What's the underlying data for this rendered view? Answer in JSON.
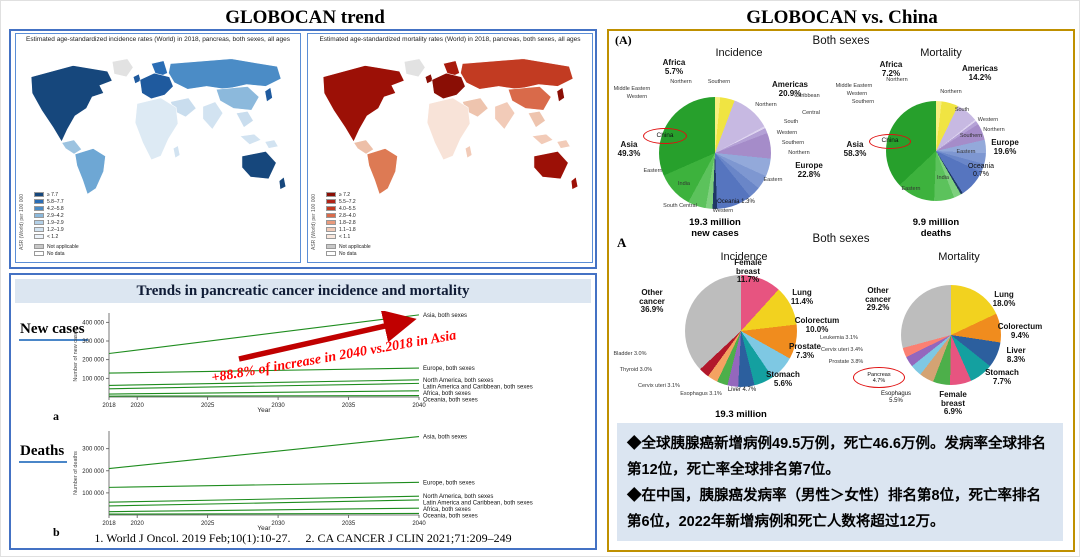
{
  "left_panel": {
    "title": "GLOBOCAN  trend",
    "citations": "1. World J Oncol. 2019 Feb;10(1):10-27.     2. CA CANCER J CLIN 2021;71:209–249",
    "trend_box": {
      "header": "Trends in pancreatic cancer incidence and mortality",
      "panel_a": "a",
      "panel_b": "b"
    }
  },
  "right_panel": {
    "title": "GLOBOCAN  vs. China",
    "marker_a": "(A)",
    "marker_a2": "A",
    "row1_header": "Both sexes",
    "row2_header": "Both sexes",
    "notes": {
      "bg_color": "#dbe5f1",
      "line1": "◆全球胰腺癌新增病例49.5万例，死亡46.6万例。发病率全球排名第12位，死亡率全球排名第7位。",
      "line2": "◆在中国，胰腺癌发病率（男性＞女性）排名第8位，死亡率排名第6位，2022年新增病例和死亡人数将超过12万。"
    }
  },
  "chart_data": {
    "maps": [
      {
        "type": "choropleth",
        "title": "Estimated age-standardized incidence rates (World) in 2018, pancreas, both sexes, all ages",
        "metric": "ASR (World) per 100 000",
        "legend_bins": [
          "≥ 7.7",
          "5.8–7.7",
          "4.2–5.8",
          "2.9–4.2",
          "1.9–2.9",
          "1.2–1.9",
          "< 1.2"
        ],
        "legend_colors": [
          "#16477c",
          "#2a6db5",
          "#4b8cc6",
          "#8cb9dc",
          "#b3d0e7",
          "#d2e3f1",
          "#ecf3fa"
        ],
        "note_labels": [
          "Not applicable",
          "No data"
        ],
        "note_colors": [
          "#c8c8c8",
          "#ffffff"
        ]
      },
      {
        "type": "choropleth",
        "title": "Estimated age-standardized mortality rates (World) in 2018, pancreas, both sexes, all ages",
        "metric": "ASR (World) per 100 000",
        "legend_bins": [
          "≥ 7.2",
          "5.5–7.2",
          "4.0–5.5",
          "2.8–4.0",
          "1.8–2.8",
          "1.1–1.8",
          "< 1.1"
        ],
        "legend_colors": [
          "#8a0e05",
          "#b02418",
          "#c23b22",
          "#d96a4a",
          "#e99a7c",
          "#f2cbb8",
          "#f9e7dd"
        ],
        "note_labels": [
          "Not applicable",
          "No data"
        ],
        "note_colors": [
          "#c8c8c8",
          "#ffffff"
        ]
      }
    ],
    "line_charts": [
      {
        "type": "line",
        "title": "New cases",
        "xlabel": "Year",
        "ylabel": "Number of new cases",
        "xlim": [
          2018,
          2040
        ],
        "x_ticks": [
          2018,
          2020,
          2025,
          2030,
          2035,
          2040
        ],
        "ylim": [
          0,
          450000
        ],
        "y_ticks": [
          100000,
          200000,
          300000,
          400000
        ],
        "line_color": "#1e8c1e",
        "series": [
          {
            "name": "Asia, both sexes",
            "points": [
              [
                2018,
                233000
              ],
              [
                2040,
                440000
              ]
            ]
          },
          {
            "name": "Europe, both sexes",
            "points": [
              [
                2018,
                128000
              ],
              [
                2040,
                155000
              ]
            ]
          },
          {
            "name": "North America, both sexes",
            "points": [
              [
                2018,
                62000
              ],
              [
                2040,
                92000
              ]
            ]
          },
          {
            "name": "Latin America and Caribbean, both sexes",
            "points": [
              [
                2018,
                44000
              ],
              [
                2040,
                73000
              ]
            ]
          },
          {
            "name": "Africa, both sexes",
            "points": [
              [
                2018,
                16000
              ],
              [
                2040,
                33000
              ]
            ]
          },
          {
            "name": "Oceania, both sexes",
            "points": [
              [
                2018,
                4600
              ],
              [
                2040,
                7600
              ]
            ]
          }
        ],
        "annotation": "+88.8% of increase in 2040 vs.2018 in Asia",
        "annotation_color": "#ff0000",
        "arrow_color": "#c00000"
      },
      {
        "type": "line",
        "title": "Deaths",
        "xlabel": "Year",
        "ylabel": "Number of deaths",
        "xlim": [
          2018,
          2040
        ],
        "x_ticks": [
          2018,
          2020,
          2025,
          2030,
          2035,
          2040
        ],
        "ylim": [
          0,
          380000
        ],
        "y_ticks": [
          100000,
          200000,
          300000
        ],
        "line_color": "#1e8c1e",
        "series": [
          {
            "name": "Asia, both sexes",
            "points": [
              [
                2018,
                210000
              ],
              [
                2040,
                355000
              ]
            ]
          },
          {
            "name": "Europe, both sexes",
            "points": [
              [
                2018,
                125000
              ],
              [
                2040,
                148000
              ]
            ]
          },
          {
            "name": "North America, both sexes",
            "points": [
              [
                2018,
                58000
              ],
              [
                2040,
                85000
              ]
            ]
          },
          {
            "name": "Latin America and Caribbean, both sexes",
            "points": [
              [
                2018,
                41000
              ],
              [
                2040,
                68000
              ]
            ]
          },
          {
            "name": "Africa, both sexes",
            "points": [
              [
                2018,
                15000
              ],
              [
                2040,
                31000
              ]
            ]
          },
          {
            "name": "Oceania, both sexes",
            "points": [
              [
                2018,
                4300
              ],
              [
                2040,
                7000
              ]
            ]
          }
        ]
      }
    ],
    "pies": [
      {
        "type": "pie",
        "title": "Incidence",
        "group": "Both sexes",
        "total_label": "19.3 million\nnew cases",
        "highlight": "China",
        "slices": [
          {
            "label": "Africa – Northern",
            "pct": 1.5,
            "color": "#f8ef7e"
          },
          {
            "label": "Africa – Sub-Saharan",
            "pct": 4.2,
            "color": "#f0e442"
          },
          {
            "label": "Americas – Northern",
            "pct": 11.4,
            "color": "#c7b9e2"
          },
          {
            "label": "Americas – Caribbean",
            "pct": 0.6,
            "color": "#ddd3ef"
          },
          {
            "label": "Americas – Central",
            "pct": 1.5,
            "color": "#b4a1d6"
          },
          {
            "label": "Americas – South",
            "pct": 7.4,
            "color": "#a58cc9"
          },
          {
            "label": "Europe – Western",
            "pct": 5.2,
            "color": "#93a9da"
          },
          {
            "label": "Europe – Southern",
            "pct": 4.0,
            "color": "#7e97d1"
          },
          {
            "label": "Europe – Northern",
            "pct": 3.4,
            "color": "#6a86c8"
          },
          {
            "label": "Europe – Eastern",
            "pct": 10.2,
            "color": "#5675bf"
          },
          {
            "label": "Oceania",
            "pct": 1.3,
            "color": "#1f3864"
          },
          {
            "label": "Asia – Western",
            "pct": 2.0,
            "color": "#7ed07e"
          },
          {
            "label": "Asia – South-Eastern",
            "pct": 5.2,
            "color": "#5cc25c"
          },
          {
            "label": "Asia – South Central (India)",
            "pct": 10.5,
            "color": "#3db23d"
          },
          {
            "label": "Asia – Eastern (China)",
            "pct": 31.6,
            "color": "#27a02c"
          }
        ],
        "main": [
          {
            "label": "Asia",
            "pct": 49.3
          },
          {
            "label": "Europe",
            "pct": 22.8
          },
          {
            "label": "Americas",
            "pct": 20.9
          },
          {
            "label": "Africa",
            "pct": 5.7
          },
          {
            "label": "Oceania",
            "pct": 1.3
          }
        ],
        "callouts": {
          "africa": "Africa\n5.7%",
          "middle_eastern": "Middle Eastern",
          "western_africa": "Western",
          "northern_africa": "Northern",
          "southern_africa": "Southern",
          "americas": "Americas\n20.9%",
          "northern_america": "Northern",
          "caribbean": "Caribbean",
          "central_america": "Central",
          "south_america": "South",
          "western_europe": "Western",
          "southern_europe": "Southern",
          "northern_europe": "Northern",
          "eastern_europe": "Eastern",
          "europe": "Europe\n22.8%",
          "oceania": "Oceania 1.3%",
          "western_asia": "Western",
          "south_central_asia": "South Central",
          "india": "India",
          "eastern_asia": "Eastern",
          "asia": "Asia\n49.3%",
          "china": "China"
        }
      },
      {
        "type": "pie",
        "title": "Mortality",
        "group": "Both sexes",
        "total_label": "9.9 million\ndeaths",
        "highlight": "China",
        "slices": [
          {
            "label": "Africa – Northern",
            "pct": 1.8,
            "color": "#f8ef7e"
          },
          {
            "label": "Africa – Sub-Saharan",
            "pct": 5.4,
            "color": "#f0e442"
          },
          {
            "label": "Americas – Northern",
            "pct": 7.0,
            "color": "#c7b9e2"
          },
          {
            "label": "Americas – Caribbean",
            "pct": 0.6,
            "color": "#ddd3ef"
          },
          {
            "label": "Americas – Central",
            "pct": 1.2,
            "color": "#b4a1d6"
          },
          {
            "label": "Americas – South",
            "pct": 5.4,
            "color": "#a58cc9"
          },
          {
            "label": "Europe – Western",
            "pct": 4.3,
            "color": "#93a9da"
          },
          {
            "label": "Europe – Southern",
            "pct": 3.5,
            "color": "#7e97d1"
          },
          {
            "label": "Europe – Northern",
            "pct": 2.8,
            "color": "#6a86c8"
          },
          {
            "label": "Europe – Eastern",
            "pct": 9.0,
            "color": "#5675bf"
          },
          {
            "label": "Oceania",
            "pct": 0.7,
            "color": "#1f3864"
          },
          {
            "label": "Asia – Western",
            "pct": 2.4,
            "color": "#7ed07e"
          },
          {
            "label": "Asia – South-Eastern",
            "pct": 6.5,
            "color": "#5cc25c"
          },
          {
            "label": "Asia – South Central (India)",
            "pct": 12.4,
            "color": "#3db23d"
          },
          {
            "label": "Asia – Eastern (China)",
            "pct": 37.0,
            "color": "#27a02c"
          }
        ],
        "main": [
          {
            "label": "Asia",
            "pct": 58.3
          },
          {
            "label": "Europe",
            "pct": 19.6
          },
          {
            "label": "Americas",
            "pct": 14.2
          },
          {
            "label": "Africa",
            "pct": 7.2
          },
          {
            "label": "Oceania",
            "pct": 0.7
          }
        ],
        "callouts": {
          "africa": "Africa\n7.2%",
          "middle_eastern": "Middle Eastern",
          "western_africa": "Western",
          "southern_africa": "Southern",
          "northern_africa": "Northern",
          "americas": "Americas\n14.2%",
          "northern_america": "Northern",
          "south_america": "South",
          "western_europe": "Western",
          "northern_europe": "Northern",
          "southern_europe": "Southern",
          "eastern_europe": "Eastern",
          "europe": "Europe\n19.6%",
          "oceania": "Oceania\n0.7%",
          "india": "India",
          "eastern_asia": "Eastern",
          "asia": "Asia\n58.3%",
          "china": "China"
        }
      },
      {
        "type": "pie",
        "title": "Incidence",
        "group": "Both sexes",
        "total_label": "19.3 million\nnew cases",
        "slices": [
          {
            "label": "Female breast",
            "pct": 11.7,
            "color": "#e75480"
          },
          {
            "label": "Lung",
            "pct": 11.4,
            "color": "#f2d21f"
          },
          {
            "label": "Colorectum",
            "pct": 10.0,
            "color": "#f08c1e"
          },
          {
            "label": "Prostate",
            "pct": 7.3,
            "color": "#7ec8e3"
          },
          {
            "label": "Stomach",
            "pct": 5.6,
            "color": "#14a0a0"
          },
          {
            "label": "Liver",
            "pct": 4.7,
            "color": "#2c5f9e"
          },
          {
            "label": "Cervix uteri",
            "pct": 3.1,
            "color": "#9467bd"
          },
          {
            "label": "Esophagus",
            "pct": 3.1,
            "color": "#4daf4a"
          },
          {
            "label": "Thyroid",
            "pct": 3.0,
            "color": "#f4a261"
          },
          {
            "label": "Bladder",
            "pct": 3.0,
            "color": "#b2182b"
          },
          {
            "label": "Other cancer",
            "pct": 36.9,
            "color": "#bdbdbd"
          }
        ],
        "callouts": {
          "other": "Other\ncancer\n36.9%",
          "female_breast": "Female\nbreast\n11.7%",
          "lung": "Lung\n11.4%",
          "colorectum": "Colorectum\n10.0%",
          "prostate": "Prostate\n7.3%",
          "stomach": "Stomach\n5.6%",
          "liver": "Liver 4.7%",
          "esophagus": "Esophagus 3.1%",
          "cervix_uteri": "Cervix uteri 3.1%",
          "thyroid": "Thyroid 3.0%",
          "bladder": "Bladder 3.0%"
        }
      },
      {
        "type": "pie",
        "title": "Mortality",
        "group": "Both sexes",
        "highlight": "Pancreas",
        "slices": [
          {
            "label": "Lung",
            "pct": 18.0,
            "color": "#f2d21f"
          },
          {
            "label": "Colorectum",
            "pct": 9.4,
            "color": "#f08c1e"
          },
          {
            "label": "Liver",
            "pct": 8.3,
            "color": "#2c5f9e"
          },
          {
            "label": "Stomach",
            "pct": 7.7,
            "color": "#14a0a0"
          },
          {
            "label": "Female breast",
            "pct": 6.9,
            "color": "#e75480"
          },
          {
            "label": "Esophagus",
            "pct": 5.5,
            "color": "#4daf4a"
          },
          {
            "label": "Pancreas",
            "pct": 4.7,
            "color": "#d4a373"
          },
          {
            "label": "Prostate",
            "pct": 3.8,
            "color": "#7ec8e3"
          },
          {
            "label": "Cervix uteri",
            "pct": 3.4,
            "color": "#9467bd"
          },
          {
            "label": "Leukemia",
            "pct": 3.1,
            "color": "#fb8072"
          },
          {
            "label": "Other cancer",
            "pct": 29.2,
            "color": "#bdbdbd"
          }
        ],
        "callouts": {
          "other": "Other\ncancer\n29.2%",
          "lung": "Lung\n18.0%",
          "colorectum": "Colorectum\n9.4%",
          "liver": "Liver\n8.3%",
          "stomach": "Stomach\n7.7%",
          "female_breast": "Female\nbreast\n6.9%",
          "esophagus": "Esophagus\n5.5%",
          "pancreas": "Pancreas\n4.7%",
          "prostate": "Prostate 3.8%",
          "cervix_uteri": "Cervix uteri 3.4%",
          "leukemia": "Leukemia 3.1%"
        }
      }
    ]
  }
}
